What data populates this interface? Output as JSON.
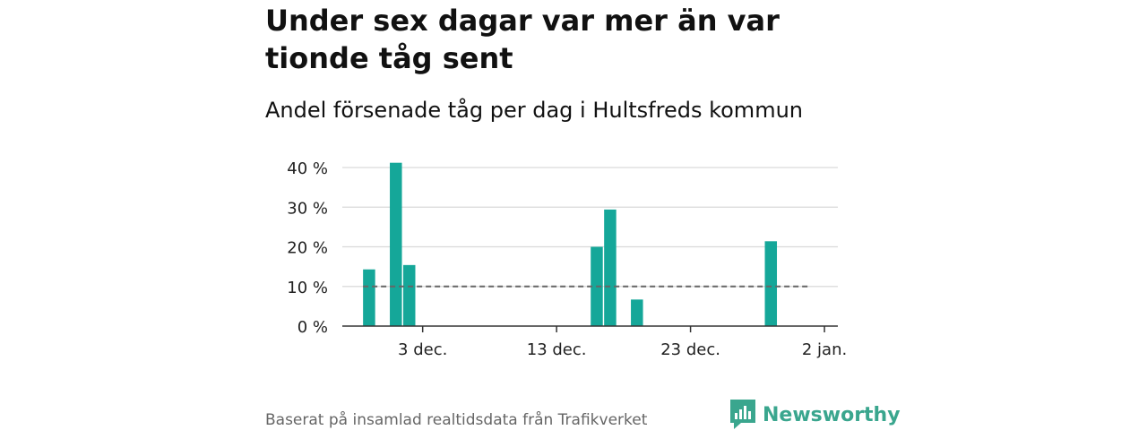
{
  "title": "Under sex dagar var mer än var tionde tåg sent",
  "subtitle": "Andel försenade tåg per dag i Hultsfreds kommun",
  "source": "Baserat på insamlad realtidsdata från Trafikverket",
  "brand": "Newsworthy",
  "colors": {
    "bar": "#15a799",
    "grid": "#d9d9d9",
    "reference_line": "#666666",
    "axis": "#333333",
    "brand": "#3aa68e"
  },
  "chart_data": {
    "type": "bar",
    "y_unit": "%",
    "ylim": [
      0,
      40
    ],
    "yticks": [
      {
        "value": 0,
        "label": "0 %"
      },
      {
        "value": 10,
        "label": "10 %"
      },
      {
        "value": 20,
        "label": "20 %"
      },
      {
        "value": 30,
        "label": "30 %"
      },
      {
        "value": 40,
        "label": "40 %"
      }
    ],
    "xlim": [
      "2023-11-27",
      "2024-01-03"
    ],
    "xticks": [
      {
        "date": "2023-12-03",
        "label": "3 dec."
      },
      {
        "date": "2023-12-13",
        "label": "13 dec."
      },
      {
        "date": "2023-12-23",
        "label": "23 dec."
      },
      {
        "date": "2024-01-02",
        "label": "2 jan."
      }
    ],
    "bars": [
      {
        "date": "2023-11-29",
        "value": 14.3
      },
      {
        "date": "2023-12-01",
        "value": 41.2
      },
      {
        "date": "2023-12-02",
        "value": 15.4
      },
      {
        "date": "2023-12-16",
        "value": 20.0
      },
      {
        "date": "2023-12-17",
        "value": 29.4
      },
      {
        "date": "2023-12-19",
        "value": 6.7
      },
      {
        "date": "2023-12-29",
        "value": 21.4
      }
    ],
    "reference_line": {
      "value": 10,
      "from": "2023-11-29",
      "to": "2024-01-01"
    },
    "grid": true,
    "legend": "none"
  }
}
